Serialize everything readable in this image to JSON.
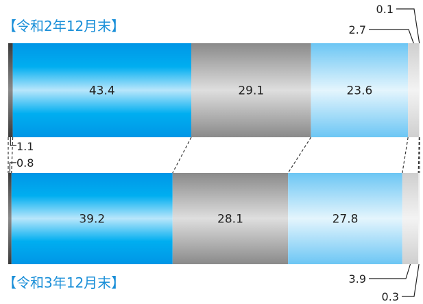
{
  "chart_data": {
    "type": "bar",
    "orientation": "horizontal-stacked-100",
    "rows": [
      {
        "label": "【令和2年12月末】",
        "values": [
          1.1,
          43.4,
          29.1,
          23.6,
          2.7,
          0.1
        ]
      },
      {
        "label": "【令和3年12月末】",
        "values": [
          0.8,
          39.2,
          28.1,
          27.8,
          3.9,
          0.3
        ]
      }
    ],
    "segment_colors": [
      "#555555",
      "#00aeef",
      "#9e9e9e",
      "#8fd3f7",
      "#dcdcdc",
      "#f2f2f2"
    ],
    "legend": "none",
    "grid": false
  }
}
